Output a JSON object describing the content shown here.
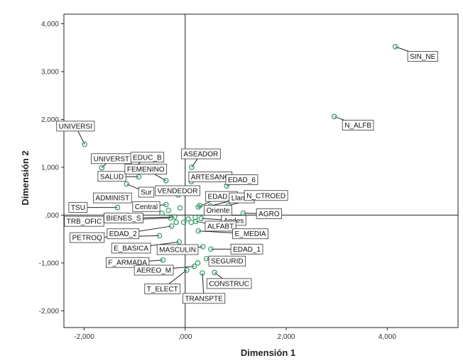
{
  "chart_data": {
    "type": "scatter",
    "title": "",
    "xlabel": "Dimensión 1",
    "ylabel": "Dimensión 2",
    "xlim": [
      -2400,
      5400
    ],
    "ylim": [
      -2350,
      4200
    ],
    "x_ticks": [
      {
        "value": -2000,
        "label": "-2,000"
      },
      {
        "value": 0,
        "label": ",000"
      },
      {
        "value": 2000,
        "label": "2,000"
      },
      {
        "value": 4000,
        "label": "4,000"
      }
    ],
    "y_ticks": [
      {
        "value": 4000,
        "label": "4,000"
      },
      {
        "value": 3000,
        "label": "3,000"
      },
      {
        "value": 2000,
        "label": "2,000"
      },
      {
        "value": 1000,
        "label": "1,000"
      },
      {
        "value": 0,
        "label": ",000"
      },
      {
        "value": -1000,
        "label": "-1,000"
      },
      {
        "value": -2000,
        "label": "-2,000"
      }
    ],
    "reference_lines": {
      "x": 0,
      "y": 0
    },
    "grid": false,
    "legend": "none",
    "marker_color": "#3b9e6e",
    "points": [
      {
        "label": "SIN_NE",
        "x": 4160,
        "y": 3520,
        "lx": 4700,
        "ly": 3320
      },
      {
        "label": "N_ALFB",
        "x": 2950,
        "y": 2060,
        "lx": 3420,
        "ly": 1880
      },
      {
        "label": "UNIVERSI",
        "x": -1990,
        "y": 1480,
        "lx": -2170,
        "ly": 1860
      },
      {
        "label": "UNIVERST",
        "x": -1650,
        "y": 990,
        "lx": -1460,
        "ly": 1180
      },
      {
        "label": "EDUC_B",
        "x": -1080,
        "y": 950,
        "lx": -750,
        "ly": 1210
      },
      {
        "label": "ASEADOR",
        "x": 130,
        "y": 1000,
        "lx": 310,
        "ly": 1280
      },
      {
        "label": "SALUD",
        "x": -920,
        "y": 800,
        "lx": -1450,
        "ly": 810
      },
      {
        "label": "FEMENINO",
        "x": -380,
        "y": 720,
        "lx": -780,
        "ly": 960
      },
      {
        "label": "ARTESANO",
        "x": 120,
        "y": 700,
        "lx": 500,
        "ly": 800
      },
      {
        "label": "EDAD_6",
        "x": 820,
        "y": 610,
        "lx": 1120,
        "ly": 740
      },
      {
        "label": "ADMINIST",
        "x": -1160,
        "y": 360,
        "lx": -1440,
        "ly": 360
      },
      {
        "label": "Sur",
        "x": -1160,
        "y": 650,
        "lx": -770,
        "ly": 480
      },
      {
        "label": "VENDEDOR",
        "x": -140,
        "y": 420,
        "lx": -150,
        "ly": 510
      },
      {
        "label": "EDAD_4",
        "x": 260,
        "y": 170,
        "lx": 720,
        "ly": 390
      },
      {
        "label": "Llanos",
        "x": 500,
        "y": 190,
        "lx": 1120,
        "ly": 360
      },
      {
        "label": "N_CTROED",
        "x": 860,
        "y": 200,
        "lx": 1600,
        "ly": 410
      },
      {
        "label": "TSU",
        "x": -1340,
        "y": 160,
        "lx": -2120,
        "ly": 160
      },
      {
        "label": "Central",
        "x": -380,
        "y": 220,
        "lx": -770,
        "ly": 180
      },
      {
        "label": "Oriente",
        "x": 420,
        "y": 80,
        "lx": 650,
        "ly": 100
      },
      {
        "label": "AGRO",
        "x": 1150,
        "y": 40,
        "lx": 1660,
        "ly": 30
      },
      {
        "label": "BIENES_S",
        "x": -210,
        "y": -40,
        "lx": -1220,
        "ly": -60
      },
      {
        "label": "TRB_OFIC",
        "x": -290,
        "y": -60,
        "lx": -2000,
        "ly": -130
      },
      {
        "label": "Andes",
        "x": 320,
        "y": -70,
        "lx": 960,
        "ly": -110
      },
      {
        "label": "ALFABT",
        "x": 210,
        "y": -130,
        "lx": 700,
        "ly": -230
      },
      {
        "label": "EDAD_2",
        "x": -270,
        "y": -230,
        "lx": -1230,
        "ly": -390
      },
      {
        "label": "E_MEDIA",
        "x": 260,
        "y": -330,
        "lx": 1290,
        "ly": -390
      },
      {
        "label": "PETROQ",
        "x": -510,
        "y": -430,
        "lx": -1940,
        "ly": -470
      },
      {
        "label": "E_BASICA",
        "x": -120,
        "y": -560,
        "lx": -1070,
        "ly": -690
      },
      {
        "label": "MASCULIN",
        "x": 350,
        "y": -660,
        "lx": -150,
        "ly": -720
      },
      {
        "label": "EDAD_1",
        "x": 510,
        "y": -710,
        "lx": 1220,
        "ly": -710
      },
      {
        "label": "F_ARMADA",
        "x": -440,
        "y": -940,
        "lx": -1140,
        "ly": -990
      },
      {
        "label": "SEGURID",
        "x": 420,
        "y": -910,
        "lx": 830,
        "ly": -960
      },
      {
        "label": "AEREO_M",
        "x": 180,
        "y": -1070,
        "lx": -620,
        "ly": -1150
      },
      {
        "label": "CONSTRUC",
        "x": 580,
        "y": -1200,
        "lx": 870,
        "ly": -1430
      },
      {
        "label": "T_ELECT",
        "x": 30,
        "y": -1150,
        "lx": -450,
        "ly": -1540
      },
      {
        "label": "TRANSPTE",
        "x": 340,
        "y": -1210,
        "lx": 370,
        "ly": -1740
      },
      {
        "label": "",
        "x": -100,
        "y": 150,
        "lx": null,
        "ly": null
      },
      {
        "label": "",
        "x": -330,
        "y": 100,
        "lx": null,
        "ly": null
      },
      {
        "label": "",
        "x": -460,
        "y": 40,
        "lx": null,
        "ly": null
      },
      {
        "label": "",
        "x": 60,
        "y": -80,
        "lx": null,
        "ly": null
      },
      {
        "label": "",
        "x": 200,
        "y": -50,
        "lx": null,
        "ly": null
      },
      {
        "label": "",
        "x": -30,
        "y": -150,
        "lx": null,
        "ly": null
      },
      {
        "label": "",
        "x": -180,
        "y": -150,
        "lx": null,
        "ly": null
      },
      {
        "label": "",
        "x": 120,
        "y": -150,
        "lx": null,
        "ly": null
      },
      {
        "label": "",
        "x": 290,
        "y": 200,
        "lx": null,
        "ly": null
      },
      {
        "label": "",
        "x": 250,
        "y": -1000,
        "lx": null,
        "ly": null
      }
    ]
  }
}
